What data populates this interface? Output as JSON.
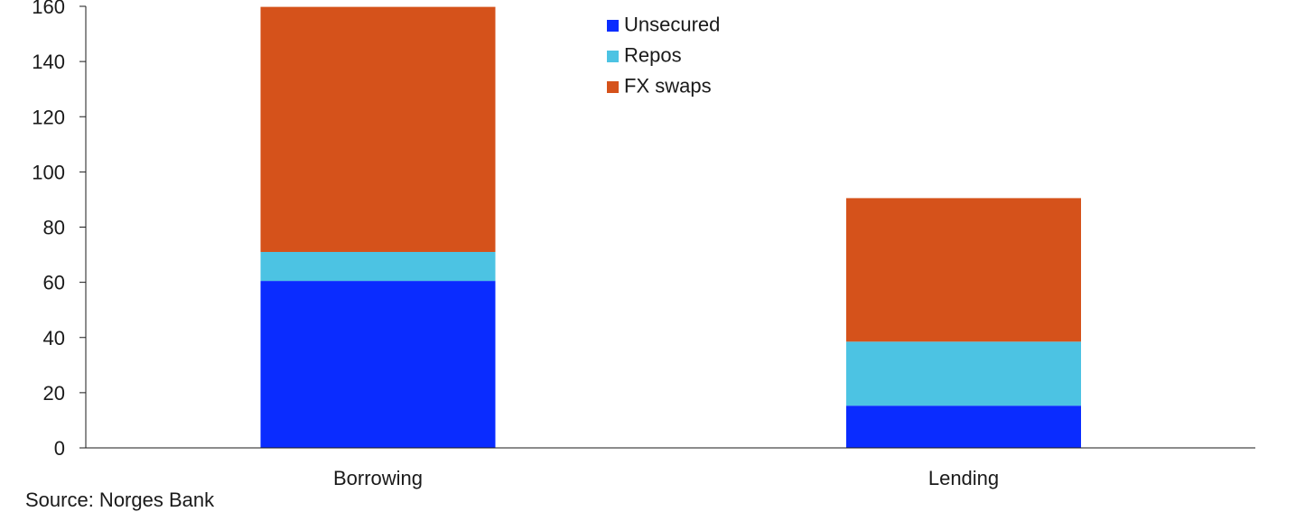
{
  "chart_data": {
    "type": "bar",
    "stacked": true,
    "categories": [
      "Borrowing",
      "Lending"
    ],
    "series": [
      {
        "name": "Unsecured",
        "color": "#0a2cff",
        "values": [
          60.5,
          15.3
        ]
      },
      {
        "name": "Repos",
        "color": "#4cc3e3",
        "values": [
          10.5,
          23.2
        ]
      },
      {
        "name": "FX swaps",
        "color": "#d5521b",
        "values": [
          88.8,
          52.0
        ]
      }
    ],
    "ylim": [
      0,
      160
    ],
    "yticks": [
      0,
      20,
      40,
      60,
      80,
      100,
      120,
      140,
      160
    ],
    "title": "",
    "xlabel": "",
    "ylabel": "",
    "legend_position": "top-center",
    "grid": false
  },
  "source_note": "Source: Norges Bank"
}
